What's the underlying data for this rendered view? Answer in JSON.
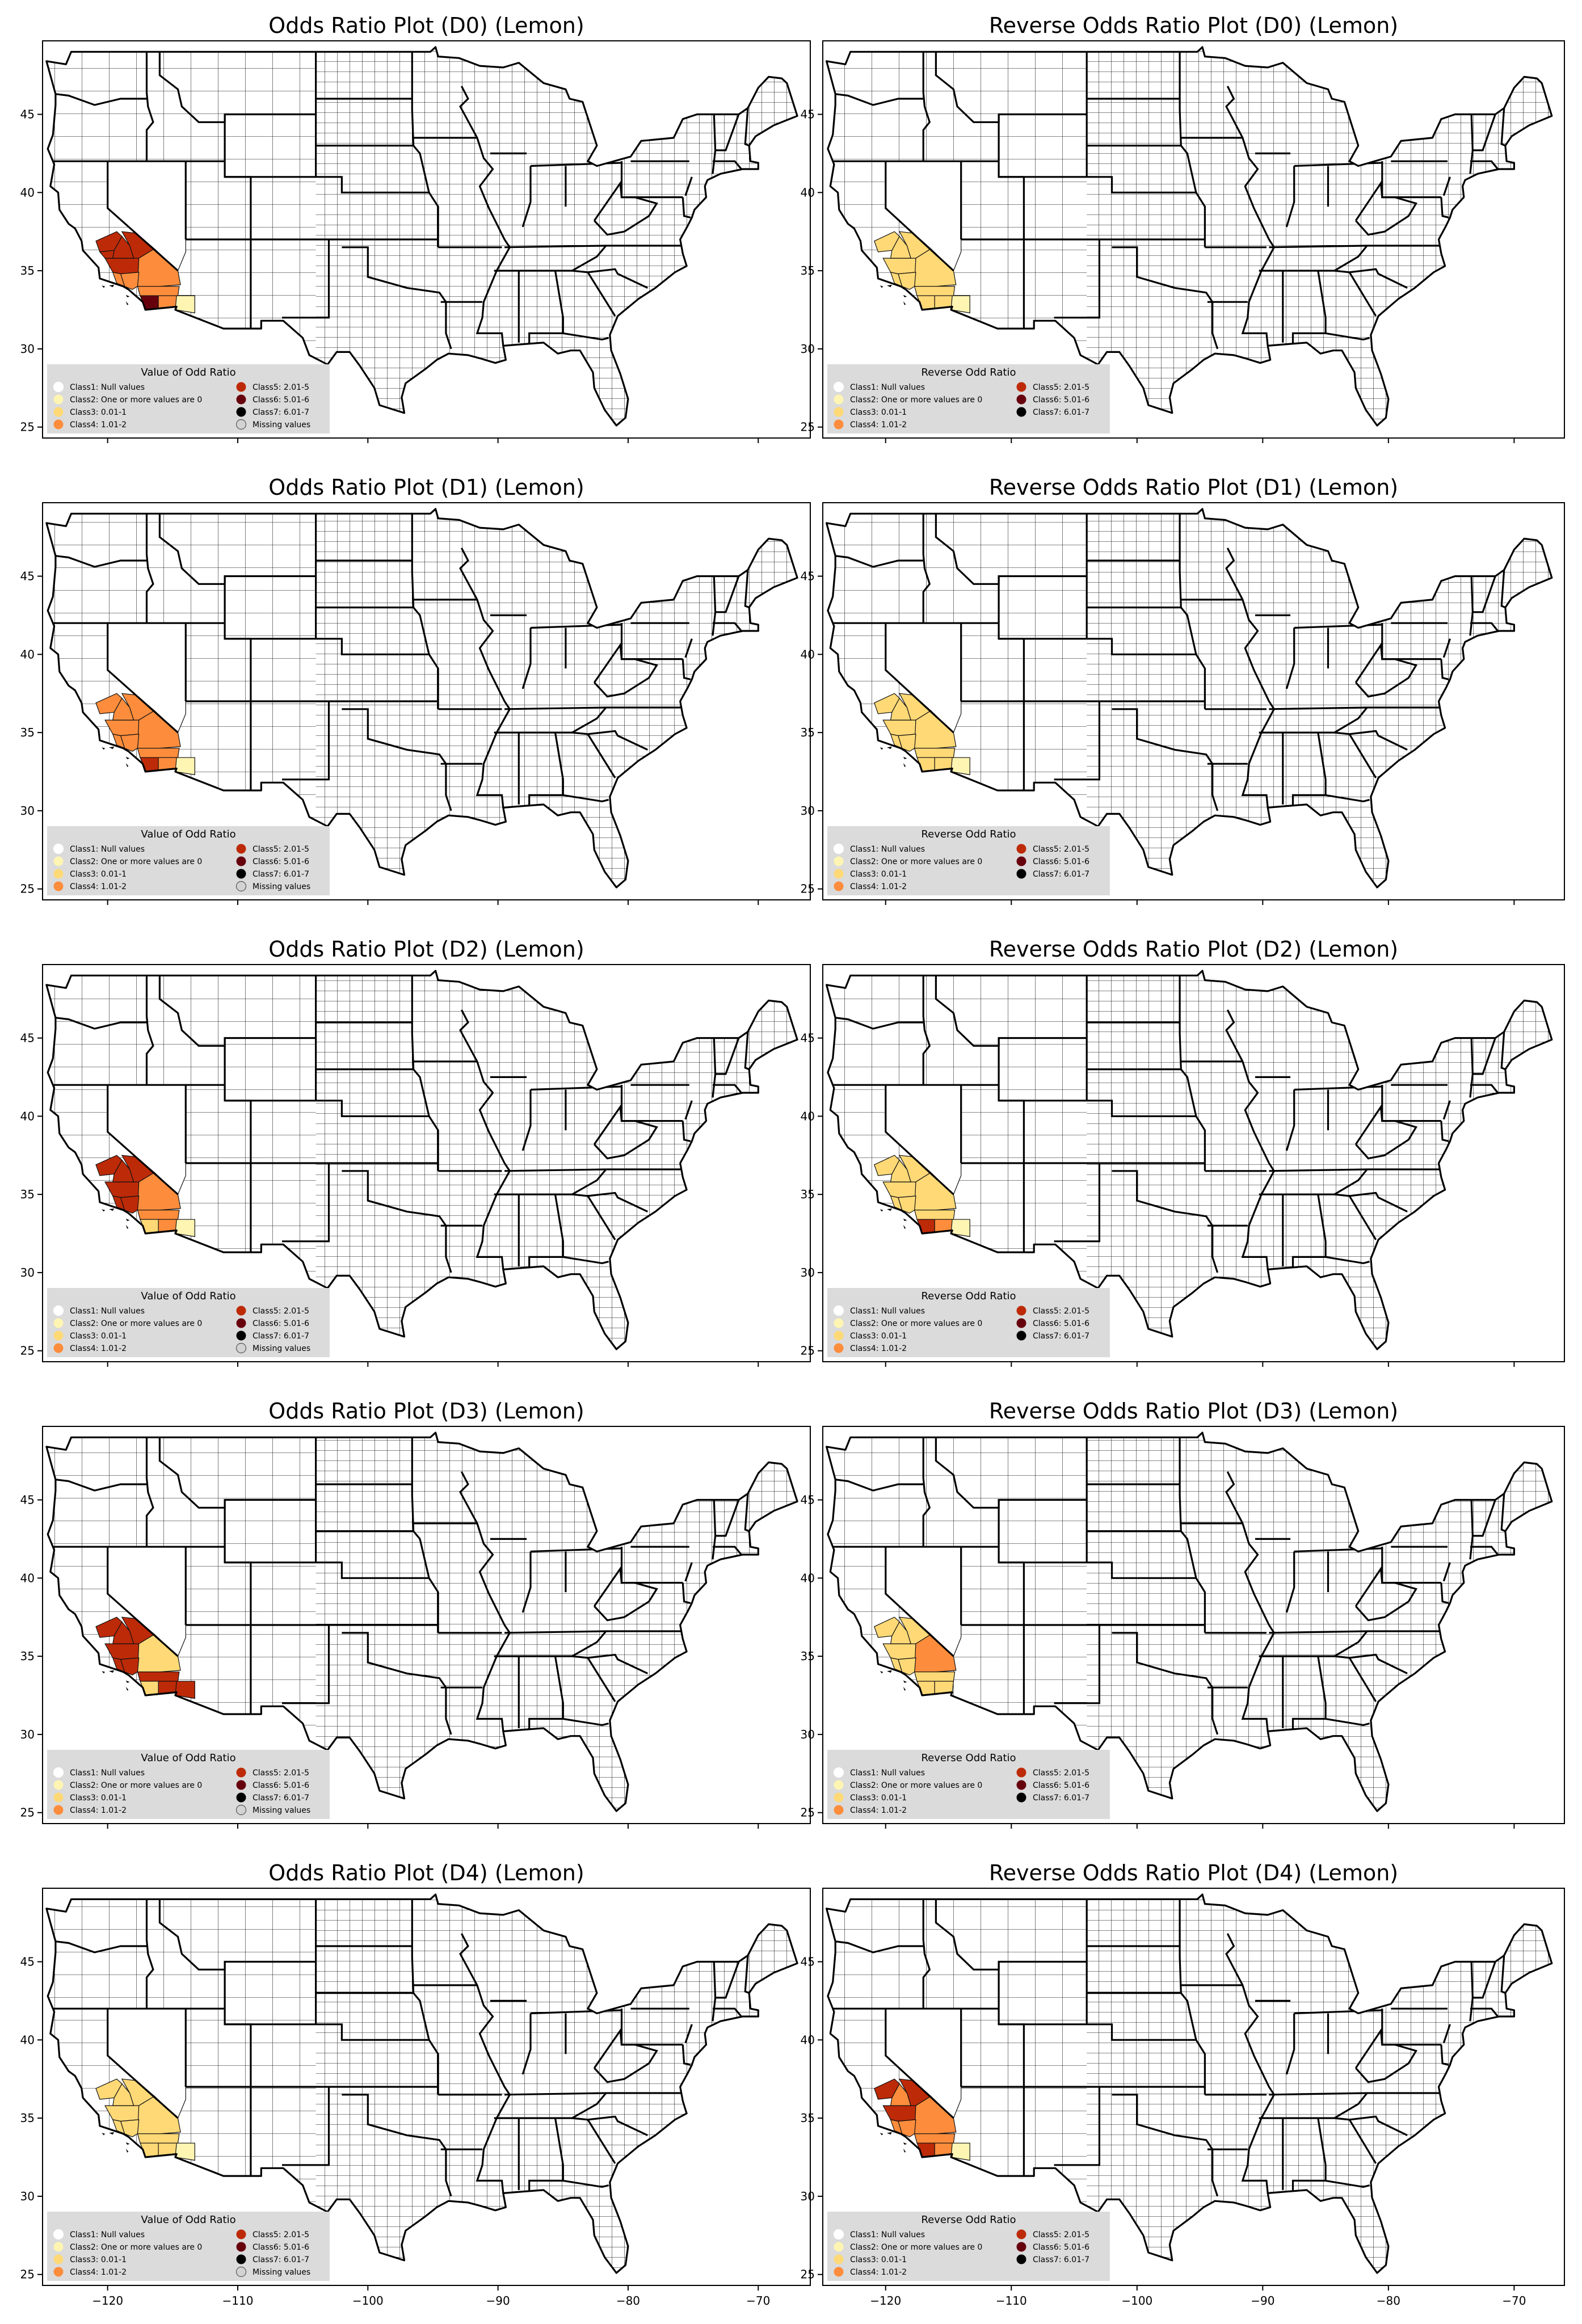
{
  "axes": {
    "xticks": [
      -120,
      -110,
      -100,
      -90,
      -80,
      -70
    ],
    "xtick_labels": [
      "−120",
      "−110",
      "−100",
      "−90",
      "−80",
      "−70"
    ],
    "yticks": [
      25,
      30,
      35,
      40,
      45
    ],
    "ytick_labels": [
      "25",
      "30",
      "35",
      "40",
      "45"
    ],
    "xlim": [
      -125,
      -66
    ],
    "ylim": [
      24.3,
      49.7
    ]
  },
  "colors": {
    "class1": "#ffffff",
    "class2": "#fff5b3",
    "class3": "#fed976",
    "class4": "#fd8d3c",
    "class5": "#bd2a08",
    "class6": "#67000d",
    "class7": "#000000",
    "missing": "#d3d3d3",
    "legend_bg": "#d9d9d9"
  },
  "legends": {
    "odds": {
      "title": "Value of Odd Ratio",
      "items": [
        {
          "label": "Class1: Null values",
          "color_key": "class1"
        },
        {
          "label": "Class2: One or more values are 0",
          "color_key": "class2"
        },
        {
          "label": "Class3: 0.01-1",
          "color_key": "class3"
        },
        {
          "label": "Class4: 1.01-2",
          "color_key": "class4"
        },
        {
          "label": "Class5: 2.01-5",
          "color_key": "class5"
        },
        {
          "label": "Class6: 5.01-6",
          "color_key": "class6"
        },
        {
          "label": "Class7: 6.01-7",
          "color_key": "class7"
        },
        {
          "label": "Missing values",
          "color_key": "missing"
        }
      ]
    },
    "reverse": {
      "title": "Reverse Odd Ratio",
      "items": [
        {
          "label": "Class1: Null values",
          "color_key": "class1"
        },
        {
          "label": "Class2: One or more values are 0",
          "color_key": "class2"
        },
        {
          "label": "Class3: 0.01-1",
          "color_key": "class3"
        },
        {
          "label": "Class4: 1.01-2",
          "color_key": "class4"
        },
        {
          "label": "Class5: 2.01-5",
          "color_key": "class5"
        },
        {
          "label": "Class6: 5.01-6",
          "color_key": "class6"
        },
        {
          "label": "Class7: 6.01-7",
          "color_key": "class7"
        }
      ]
    }
  },
  "panels": [
    {
      "title": "Odds Ratio Plot (D0) (Lemon)",
      "legend": "odds",
      "counties": [
        {
          "region": "Inyo",
          "class": "class5"
        },
        {
          "region": "Kern",
          "class": "class5"
        },
        {
          "region": "Tulare",
          "class": "class5"
        },
        {
          "region": "Fresno",
          "class": "class5"
        },
        {
          "region": "Kings",
          "class": "class5"
        },
        {
          "region": "San Bernardino",
          "class": "class4"
        },
        {
          "region": "Los Angeles",
          "class": "class4"
        },
        {
          "region": "Ventura",
          "class": "class4"
        },
        {
          "region": "Riverside",
          "class": "class4"
        },
        {
          "region": "San Diego",
          "class": "class6"
        },
        {
          "region": "Imperial",
          "class": "class4"
        },
        {
          "region": "Yuma",
          "class": "class2"
        }
      ]
    },
    {
      "title": "Reverse Odds Ratio Plot (D0) (Lemon)",
      "legend": "reverse",
      "counties": [
        {
          "region": "Inyo",
          "class": "class3"
        },
        {
          "region": "Kern",
          "class": "class3"
        },
        {
          "region": "Tulare",
          "class": "class3"
        },
        {
          "region": "Fresno",
          "class": "class3"
        },
        {
          "region": "San Bernardino",
          "class": "class3"
        },
        {
          "region": "Los Angeles",
          "class": "class3"
        },
        {
          "region": "Ventura",
          "class": "class3"
        },
        {
          "region": "Riverside",
          "class": "class3"
        },
        {
          "region": "San Diego",
          "class": "class3"
        },
        {
          "region": "Imperial",
          "class": "class3"
        },
        {
          "region": "Yuma",
          "class": "class2"
        }
      ]
    },
    {
      "title": "Odds Ratio Plot (D1) (Lemon)",
      "legend": "odds",
      "counties": [
        {
          "region": "Inyo",
          "class": "class4"
        },
        {
          "region": "Kern",
          "class": "class4"
        },
        {
          "region": "Tulare",
          "class": "class4"
        },
        {
          "region": "Fresno",
          "class": "class4"
        },
        {
          "region": "San Bernardino",
          "class": "class4"
        },
        {
          "region": "Los Angeles",
          "class": "class4"
        },
        {
          "region": "Ventura",
          "class": "class4"
        },
        {
          "region": "Riverside",
          "class": "class4"
        },
        {
          "region": "San Diego",
          "class": "class5"
        },
        {
          "region": "Imperial",
          "class": "class4"
        },
        {
          "region": "Yuma",
          "class": "class2"
        }
      ]
    },
    {
      "title": "Reverse Odds Ratio Plot (D1) (Lemon)",
      "legend": "reverse",
      "counties": [
        {
          "region": "Inyo",
          "class": "class3"
        },
        {
          "region": "Kern",
          "class": "class3"
        },
        {
          "region": "Tulare",
          "class": "class3"
        },
        {
          "region": "Fresno",
          "class": "class3"
        },
        {
          "region": "San Bernardino",
          "class": "class3"
        },
        {
          "region": "Los Angeles",
          "class": "class3"
        },
        {
          "region": "Ventura",
          "class": "class3"
        },
        {
          "region": "Riverside",
          "class": "class3"
        },
        {
          "region": "San Diego",
          "class": "class3"
        },
        {
          "region": "Imperial",
          "class": "class3"
        },
        {
          "region": "Yuma",
          "class": "class2"
        }
      ]
    },
    {
      "title": "Odds Ratio Plot (D2) (Lemon)",
      "legend": "odds",
      "counties": [
        {
          "region": "Inyo",
          "class": "class5"
        },
        {
          "region": "Kern",
          "class": "class5"
        },
        {
          "region": "Tulare",
          "class": "class5"
        },
        {
          "region": "Fresno",
          "class": "class5"
        },
        {
          "region": "San Bernardino",
          "class": "class4"
        },
        {
          "region": "Los Angeles",
          "class": "class5"
        },
        {
          "region": "Ventura",
          "class": "class5"
        },
        {
          "region": "Riverside",
          "class": "class4"
        },
        {
          "region": "San Diego",
          "class": "class3"
        },
        {
          "region": "Imperial",
          "class": "class4"
        },
        {
          "region": "Yuma",
          "class": "class2"
        }
      ]
    },
    {
      "title": "Reverse Odds Ratio Plot (D2) (Lemon)",
      "legend": "reverse",
      "counties": [
        {
          "region": "Inyo",
          "class": "class3"
        },
        {
          "region": "Kern",
          "class": "class3"
        },
        {
          "region": "Tulare",
          "class": "class3"
        },
        {
          "region": "Fresno",
          "class": "class3"
        },
        {
          "region": "San Bernardino",
          "class": "class3"
        },
        {
          "region": "Los Angeles",
          "class": "class3"
        },
        {
          "region": "Ventura",
          "class": "class3"
        },
        {
          "region": "Riverside",
          "class": "class3"
        },
        {
          "region": "San Diego",
          "class": "class5"
        },
        {
          "region": "Imperial",
          "class": "class4"
        },
        {
          "region": "Yuma",
          "class": "class2"
        }
      ]
    },
    {
      "title": "Odds Ratio Plot (D3) (Lemon)",
      "legend": "odds",
      "counties": [
        {
          "region": "Inyo",
          "class": "class5"
        },
        {
          "region": "Kern",
          "class": "class5"
        },
        {
          "region": "Tulare",
          "class": "class5"
        },
        {
          "region": "Fresno",
          "class": "class5"
        },
        {
          "region": "San Bernardino",
          "class": "class3"
        },
        {
          "region": "Los Angeles",
          "class": "class5"
        },
        {
          "region": "Ventura",
          "class": "class5"
        },
        {
          "region": "Riverside",
          "class": "class5"
        },
        {
          "region": "San Diego",
          "class": "class3"
        },
        {
          "region": "Imperial",
          "class": "class5"
        },
        {
          "region": "Yuma",
          "class": "class5"
        }
      ]
    },
    {
      "title": "Reverse Odds Ratio Plot (D3) (Lemon)",
      "legend": "reverse",
      "counties": [
        {
          "region": "Inyo",
          "class": "class3"
        },
        {
          "region": "Kern",
          "class": "class3"
        },
        {
          "region": "Tulare",
          "class": "class3"
        },
        {
          "region": "Fresno",
          "class": "class3"
        },
        {
          "region": "San Bernardino",
          "class": "class4"
        },
        {
          "region": "Los Angeles",
          "class": "class3"
        },
        {
          "region": "Ventura",
          "class": "class3"
        },
        {
          "region": "Riverside",
          "class": "class3"
        },
        {
          "region": "San Diego",
          "class": "class3"
        },
        {
          "region": "Imperial",
          "class": "class3"
        }
      ]
    },
    {
      "title": "Odds Ratio Plot (D4) (Lemon)",
      "legend": "odds",
      "counties": [
        {
          "region": "Inyo",
          "class": "class3"
        },
        {
          "region": "Kern",
          "class": "class3"
        },
        {
          "region": "Tulare",
          "class": "class3"
        },
        {
          "region": "Fresno",
          "class": "class3"
        },
        {
          "region": "San Bernardino",
          "class": "class3"
        },
        {
          "region": "Los Angeles",
          "class": "class3"
        },
        {
          "region": "Ventura",
          "class": "class3"
        },
        {
          "region": "Riverside",
          "class": "class3"
        },
        {
          "region": "San Diego",
          "class": "class3"
        },
        {
          "region": "Imperial",
          "class": "class3"
        },
        {
          "region": "Yuma",
          "class": "class2"
        }
      ]
    },
    {
      "title": "Reverse Odds Ratio Plot (D4) (Lemon)",
      "legend": "reverse",
      "counties": [
        {
          "region": "Inyo",
          "class": "class5"
        },
        {
          "region": "Kern",
          "class": "class5"
        },
        {
          "region": "Tulare",
          "class": "class4"
        },
        {
          "region": "Fresno",
          "class": "class5"
        },
        {
          "region": "San Bernardino",
          "class": "class4"
        },
        {
          "region": "Los Angeles",
          "class": "class4"
        },
        {
          "region": "Ventura",
          "class": "class4"
        },
        {
          "region": "Riverside",
          "class": "class4"
        },
        {
          "region": "San Diego",
          "class": "class5"
        },
        {
          "region": "Imperial",
          "class": "class4"
        },
        {
          "region": "Yuma",
          "class": "class2"
        }
      ]
    }
  ]
}
